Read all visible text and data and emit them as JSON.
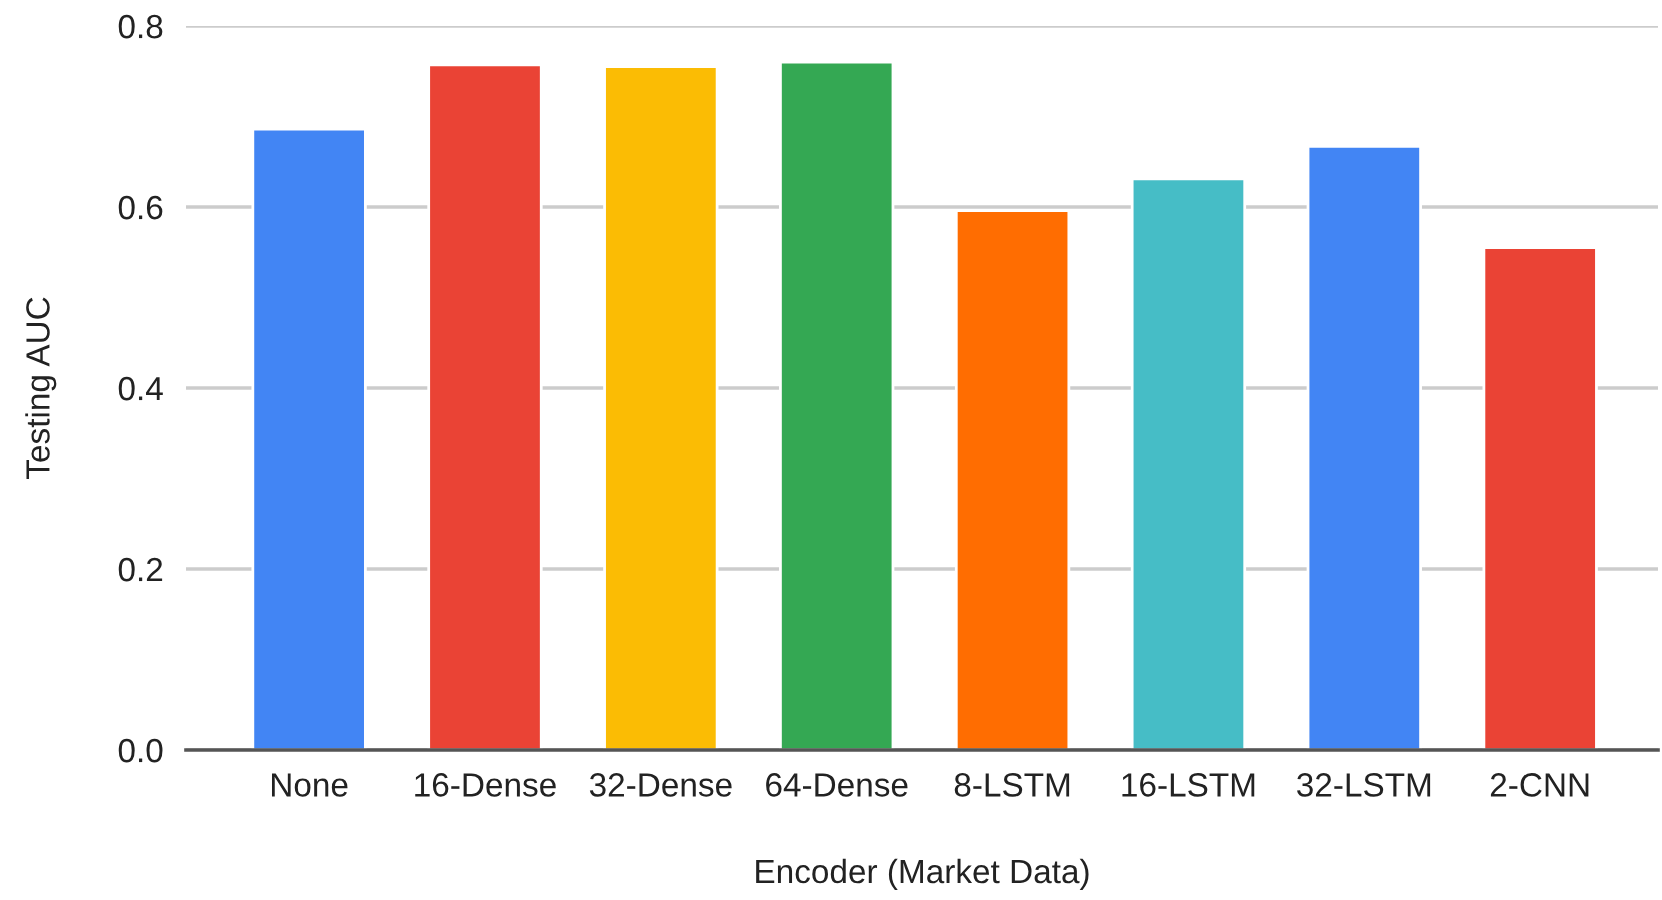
{
  "chart_data": {
    "type": "bar",
    "xlabel": "Encoder (Market Data)",
    "ylabel": "Testing AUC",
    "categories": [
      "None",
      "16-Dense",
      "32-Dense",
      "64-Dense",
      "8-LSTM",
      "16-LSTM",
      "32-LSTM",
      "2-CNN"
    ],
    "values": [
      0.686,
      0.757,
      0.755,
      0.76,
      0.596,
      0.631,
      0.667,
      0.555
    ],
    "colors": [
      "#4285f4",
      "#ea4335",
      "#fbbc04",
      "#34a853",
      "#ff6d01",
      "#46bdc6",
      "#4285f4",
      "#ea4335"
    ],
    "ylim": [
      0,
      0.8
    ],
    "yticks": [
      {
        "value": 0,
        "label": "0.0"
      },
      {
        "value": 0.2,
        "label": "0.2"
      },
      {
        "value": 0.4,
        "label": "0.4"
      },
      {
        "value": 0.6,
        "label": "0.6"
      },
      {
        "value": 0.8,
        "label": "0.8"
      }
    ],
    "grid": "y"
  }
}
